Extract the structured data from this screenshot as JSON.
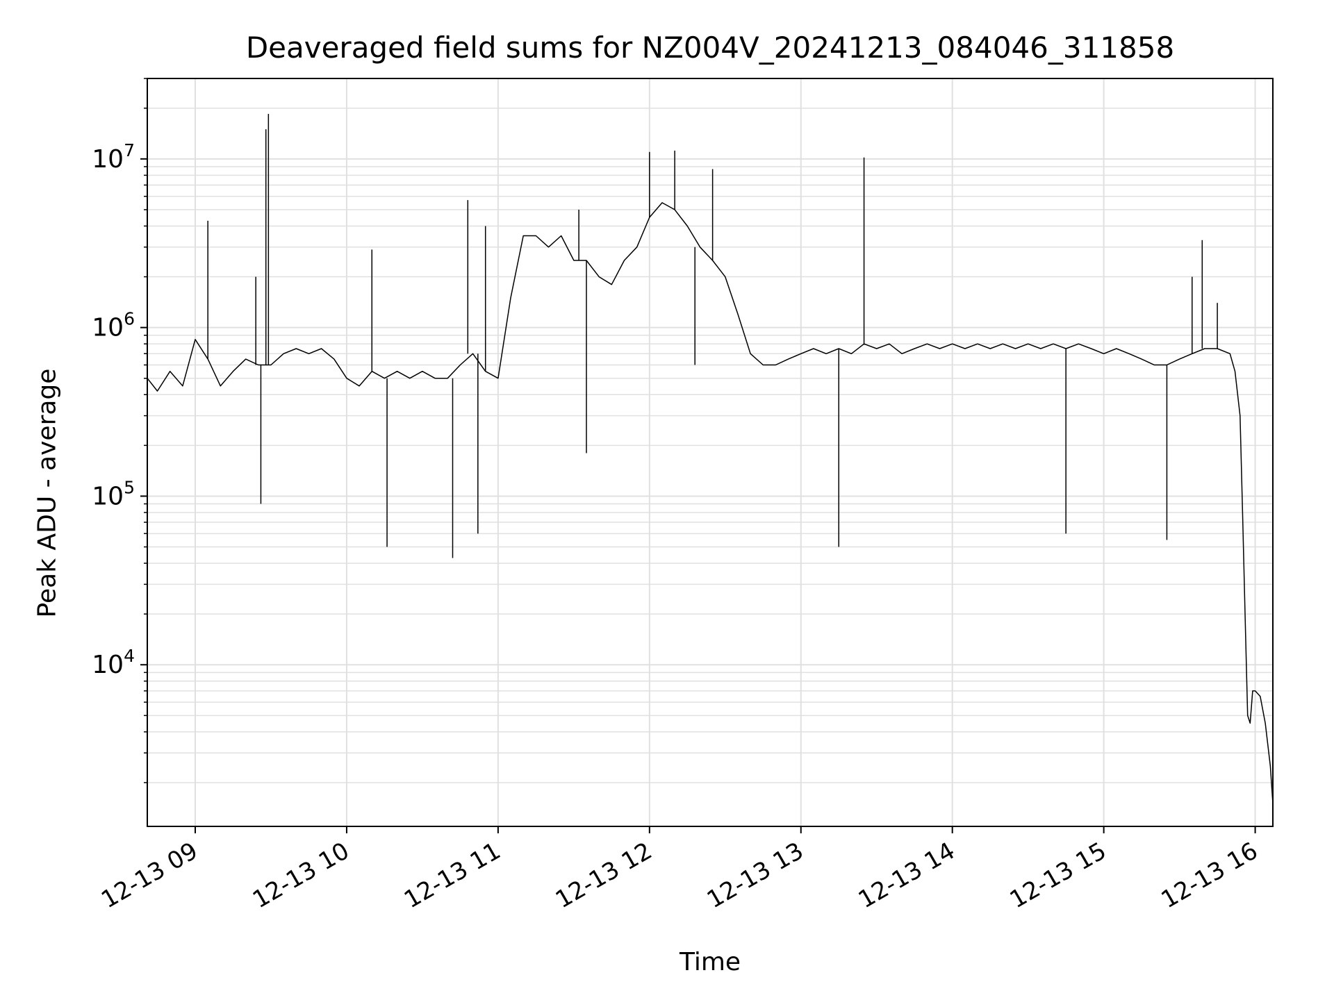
{
  "chart_data": {
    "type": "line",
    "title": "Deaveraged field sums for NZ004V_20241213_084046_311858",
    "xlabel": "Time",
    "ylabel": "Peak ADU - average",
    "yscale": "log",
    "ylim": [
      1100,
      30000000
    ],
    "xlim": [
      "2024-12-13 08:41",
      "2024-12-13 16:07"
    ],
    "grid": true,
    "line_color": "#000000",
    "grid_color": "#e0e0e0",
    "x_ticks": [
      {
        "at": "2024-12-13 09:00",
        "label": "12-13 09"
      },
      {
        "at": "2024-12-13 10:00",
        "label": "12-13 10"
      },
      {
        "at": "2024-12-13 11:00",
        "label": "12-13 11"
      },
      {
        "at": "2024-12-13 12:00",
        "label": "12-13 12"
      },
      {
        "at": "2024-12-13 13:00",
        "label": "12-13 13"
      },
      {
        "at": "2024-12-13 14:00",
        "label": "12-13 14"
      },
      {
        "at": "2024-12-13 15:00",
        "label": "12-13 15"
      },
      {
        "at": "2024-12-13 16:00",
        "label": "12-13 16"
      }
    ],
    "y_ticks": [
      {
        "value": 10000,
        "base": "10",
        "exp": "4"
      },
      {
        "value": 100000,
        "base": "10",
        "exp": "5"
      },
      {
        "value": 1000000,
        "base": "10",
        "exp": "6"
      },
      {
        "value": 10000000,
        "base": "10",
        "exp": "7"
      }
    ],
    "series": [
      {
        "points": [
          [
            "2024-12-13 08:41",
            500000
          ],
          [
            "2024-12-13 08:45",
            420000
          ],
          [
            "2024-12-13 08:50",
            550000
          ],
          [
            "2024-12-13 08:55",
            450000
          ],
          [
            "2024-12-13 09:00",
            850000
          ],
          [
            "2024-12-13 09:05",
            650000
          ],
          [
            "2024-12-13 09:10",
            450000
          ],
          [
            "2024-12-13 09:15",
            550000
          ],
          [
            "2024-12-13 09:20",
            650000
          ],
          [
            "2024-12-13 09:25",
            600000
          ],
          [
            "2024-12-13 09:30",
            600000
          ],
          [
            "2024-12-13 09:35",
            700000
          ],
          [
            "2024-12-13 09:40",
            750000
          ],
          [
            "2024-12-13 09:45",
            700000
          ],
          [
            "2024-12-13 09:50",
            750000
          ],
          [
            "2024-12-13 09:55",
            650000
          ],
          [
            "2024-12-13 10:00",
            500000
          ],
          [
            "2024-12-13 10:05",
            450000
          ],
          [
            "2024-12-13 10:10",
            550000
          ],
          [
            "2024-12-13 10:15",
            500000
          ],
          [
            "2024-12-13 10:20",
            550000
          ],
          [
            "2024-12-13 10:25",
            500000
          ],
          [
            "2024-12-13 10:30",
            550000
          ],
          [
            "2024-12-13 10:35",
            500000
          ],
          [
            "2024-12-13 10:40",
            500000
          ],
          [
            "2024-12-13 10:45",
            600000
          ],
          [
            "2024-12-13 10:50",
            700000
          ],
          [
            "2024-12-13 10:55",
            550000
          ],
          [
            "2024-12-13 11:00",
            500000
          ],
          [
            "2024-12-13 11:05",
            1500000
          ],
          [
            "2024-12-13 11:10",
            3500000
          ],
          [
            "2024-12-13 11:15",
            3500000
          ],
          [
            "2024-12-13 11:20",
            3000000
          ],
          [
            "2024-12-13 11:25",
            3500000
          ],
          [
            "2024-12-13 11:30",
            2500000
          ],
          [
            "2024-12-13 11:35",
            2500000
          ],
          [
            "2024-12-13 11:40",
            2000000
          ],
          [
            "2024-12-13 11:45",
            1800000
          ],
          [
            "2024-12-13 11:50",
            2500000
          ],
          [
            "2024-12-13 11:55",
            3000000
          ],
          [
            "2024-12-13 12:00",
            4500000
          ],
          [
            "2024-12-13 12:05",
            5500000
          ],
          [
            "2024-12-13 12:10",
            5000000
          ],
          [
            "2024-12-13 12:15",
            4000000
          ],
          [
            "2024-12-13 12:20",
            3000000
          ],
          [
            "2024-12-13 12:25",
            2500000
          ],
          [
            "2024-12-13 12:30",
            2000000
          ],
          [
            "2024-12-13 12:35",
            1200000
          ],
          [
            "2024-12-13 12:40",
            700000
          ],
          [
            "2024-12-13 12:45",
            600000
          ],
          [
            "2024-12-13 12:50",
            600000
          ],
          [
            "2024-12-13 12:55",
            650000
          ],
          [
            "2024-12-13 13:00",
            700000
          ],
          [
            "2024-12-13 13:05",
            750000
          ],
          [
            "2024-12-13 13:10",
            700000
          ],
          [
            "2024-12-13 13:15",
            750000
          ],
          [
            "2024-12-13 13:20",
            700000
          ],
          [
            "2024-12-13 13:25",
            800000
          ],
          [
            "2024-12-13 13:30",
            750000
          ],
          [
            "2024-12-13 13:35",
            800000
          ],
          [
            "2024-12-13 13:40",
            700000
          ],
          [
            "2024-12-13 13:45",
            750000
          ],
          [
            "2024-12-13 13:50",
            800000
          ],
          [
            "2024-12-13 13:55",
            750000
          ],
          [
            "2024-12-13 14:00",
            800000
          ],
          [
            "2024-12-13 14:05",
            750000
          ],
          [
            "2024-12-13 14:10",
            800000
          ],
          [
            "2024-12-13 14:15",
            750000
          ],
          [
            "2024-12-13 14:20",
            800000
          ],
          [
            "2024-12-13 14:25",
            750000
          ],
          [
            "2024-12-13 14:30",
            800000
          ],
          [
            "2024-12-13 14:35",
            750000
          ],
          [
            "2024-12-13 14:40",
            800000
          ],
          [
            "2024-12-13 14:45",
            750000
          ],
          [
            "2024-12-13 14:50",
            800000
          ],
          [
            "2024-12-13 14:55",
            750000
          ],
          [
            "2024-12-13 15:00",
            700000
          ],
          [
            "2024-12-13 15:05",
            750000
          ],
          [
            "2024-12-13 15:10",
            700000
          ],
          [
            "2024-12-13 15:15",
            650000
          ],
          [
            "2024-12-13 15:20",
            600000
          ],
          [
            "2024-12-13 15:25",
            600000
          ],
          [
            "2024-12-13 15:30",
            650000
          ],
          [
            "2024-12-13 15:35",
            700000
          ],
          [
            "2024-12-13 15:40",
            750000
          ],
          [
            "2024-12-13 15:45",
            750000
          ],
          [
            "2024-12-13 15:50",
            700000
          ],
          [
            "2024-12-13 15:52",
            550000
          ],
          [
            "2024-12-13 15:54",
            300000
          ],
          [
            "2024-12-13 15:55",
            80000
          ],
          [
            "2024-12-13 15:56",
            20000
          ],
          [
            "2024-12-13 15:57",
            5000
          ],
          [
            "2024-12-13 15:58",
            4500
          ],
          [
            "2024-12-13 15:59",
            7000
          ],
          [
            "2024-12-13 16:00",
            7000
          ],
          [
            "2024-12-13 16:02",
            6500
          ],
          [
            "2024-12-13 16:04",
            4500
          ],
          [
            "2024-12-13 16:06",
            2500
          ],
          [
            "2024-12-13 16:07",
            1500
          ]
        ],
        "spikes": [
          [
            "2024-12-13 09:05",
            4300000
          ],
          [
            "2024-12-13 09:24",
            2000000
          ],
          [
            "2024-12-13 09:28",
            15000000
          ],
          [
            "2024-12-13 09:29",
            18500000
          ],
          [
            "2024-12-13 09:26",
            90000
          ],
          [
            "2024-12-13 10:10",
            2900000
          ],
          [
            "2024-12-13 10:16",
            50000
          ],
          [
            "2024-12-13 10:42",
            43000
          ],
          [
            "2024-12-13 10:48",
            5700000
          ],
          [
            "2024-12-13 10:55",
            4000000
          ],
          [
            "2024-12-13 10:52",
            60000
          ],
          [
            "2024-12-13 11:35",
            180000
          ],
          [
            "2024-12-13 11:32",
            5000000
          ],
          [
            "2024-12-13 12:00",
            11000000
          ],
          [
            "2024-12-13 12:10",
            11200000
          ],
          [
            "2024-12-13 12:25",
            8700000
          ],
          [
            "2024-12-13 12:18",
            600000
          ],
          [
            "2024-12-13 13:25",
            10200000
          ],
          [
            "2024-12-13 13:15",
            50000
          ],
          [
            "2024-12-13 14:45",
            60000
          ],
          [
            "2024-12-13 15:25",
            55000
          ],
          [
            "2024-12-13 15:35",
            2000000
          ],
          [
            "2024-12-13 15:39",
            3300000
          ],
          [
            "2024-12-13 15:45",
            1400000
          ]
        ]
      }
    ]
  }
}
